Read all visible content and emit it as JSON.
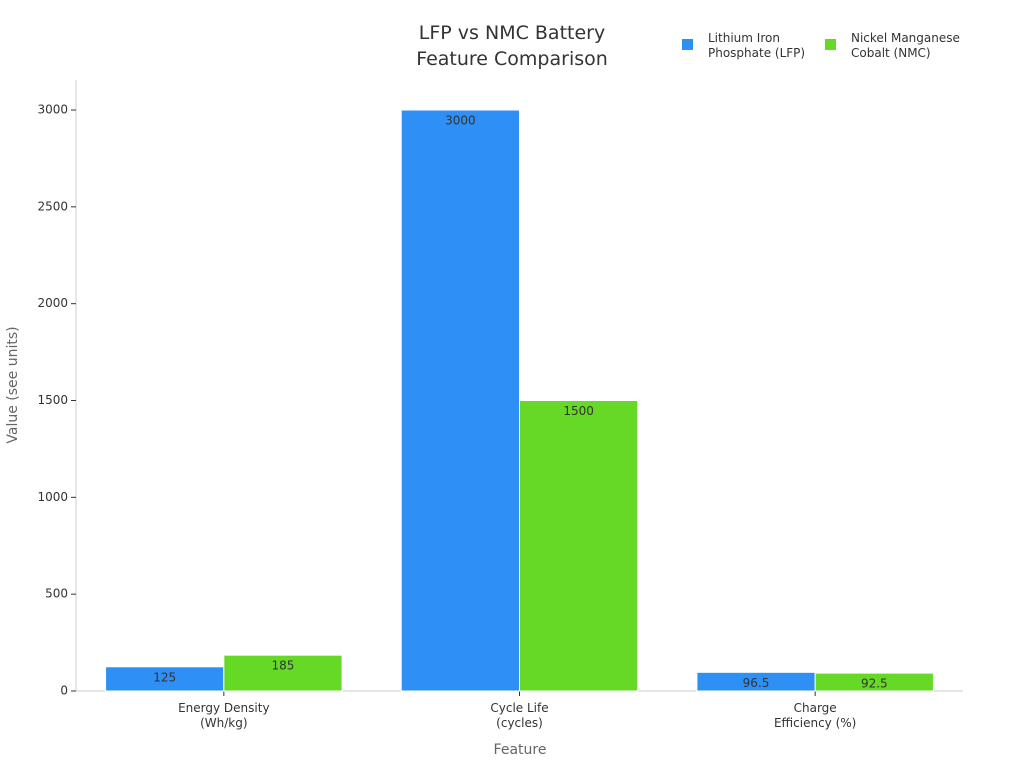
{
  "chart_data": {
    "type": "bar",
    "title": "LFP vs NMC Battery\nFeature Comparison",
    "x_label": "Feature",
    "y_label": "Value (see units)",
    "categories": [
      "Energy Density\n(Wh/kg)",
      "Cycle Life\n(cycles)",
      "Charge\nEfficiency (%)"
    ],
    "series": [
      {
        "name": "Lithium Iron\nPhosphate (LFP)",
        "color": "#2e8ff5",
        "values": [
          125,
          3000,
          96.5
        ]
      },
      {
        "name": "Nickel Manganese\nCobalt (NMC)",
        "color": "#66d926",
        "values": [
          185,
          1500,
          92.5
        ]
      }
    ],
    "ylim": [
      0,
      3155
    ],
    "yticks": [
      0,
      500,
      1000,
      1500,
      2000,
      2500,
      3000
    ],
    "grid": false,
    "legend": "upper right"
  }
}
